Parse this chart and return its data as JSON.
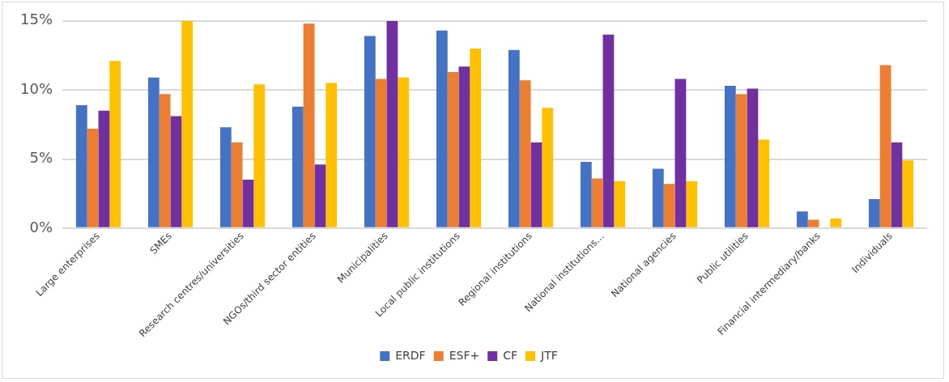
{
  "chart_data": {
    "type": "bar",
    "categories": [
      "Large enterprises",
      "SMEs",
      "Research centres/universities",
      "NGOs/third sector entities",
      "Municipalities",
      "Local public institutions",
      "Regional institutions",
      "National institutions…",
      "National agencies",
      "Public utilities",
      "Financial intermediary/banks",
      "Individuals"
    ],
    "series": [
      {
        "name": "ERDF",
        "color": "#4472c4",
        "values": [
          8.9,
          10.9,
          7.3,
          8.8,
          13.9,
          14.3,
          12.9,
          4.8,
          4.3,
          10.3,
          1.2,
          2.1
        ]
      },
      {
        "name": "ESF+",
        "color": "#ed7d31",
        "values": [
          7.2,
          9.7,
          6.2,
          14.8,
          10.8,
          11.3,
          10.7,
          3.6,
          3.2,
          9.7,
          0.6,
          11.8
        ]
      },
      {
        "name": "CF",
        "color": "#7030a0",
        "values": [
          8.5,
          8.1,
          3.5,
          4.6,
          15,
          11.7,
          6.2,
          14.0,
          10.8,
          10.1,
          0,
          6.2
        ]
      },
      {
        "name": "JTF",
        "color": "#ffc000",
        "values": [
          12.1,
          15,
          10.4,
          10.5,
          10.9,
          13.0,
          8.7,
          3.4,
          3.4,
          6.4,
          0.7,
          4.9
        ]
      }
    ],
    "ylim": [
      0,
      15
    ],
    "yticks": [
      {
        "value": 0,
        "label": "0%"
      },
      {
        "value": 5,
        "label": "5%"
      },
      {
        "value": 10,
        "label": "10%"
      },
      {
        "value": 15,
        "label": "15%"
      }
    ],
    "grid": "y",
    "legend": "bottom"
  }
}
